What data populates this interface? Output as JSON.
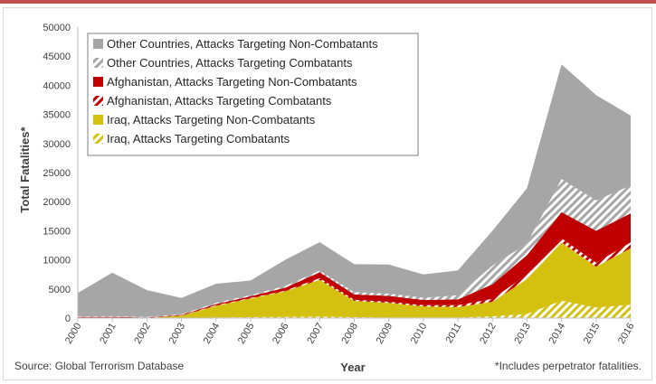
{
  "chart_data": {
    "type": "area",
    "stacked": true,
    "title": "",
    "xlabel": "Year",
    "ylabel": "Total Fatalities*",
    "ylim": [
      0,
      50000
    ],
    "yticks": [
      0,
      5000,
      10000,
      15000,
      20000,
      25000,
      30000,
      35000,
      40000,
      45000,
      50000
    ],
    "legend_position": "top-left",
    "x": [
      "2000",
      "2001",
      "2002",
      "2003",
      "2004",
      "2005",
      "2006",
      "2007",
      "2008",
      "2009",
      "2010",
      "2011",
      "2012",
      "2013",
      "2014",
      "2015",
      "2016"
    ],
    "series": [
      {
        "name": "Iraq, Attacks Targeting Combatants",
        "color": "#d4c10f",
        "pattern": "hatched",
        "values": [
          0,
          0,
          0,
          50,
          100,
          150,
          200,
          250,
          150,
          100,
          100,
          100,
          300,
          700,
          3000,
          1800,
          2300
        ]
      },
      {
        "name": "Iraq, Attacks Targeting Non-Combatants",
        "color": "#d4c10f",
        "pattern": "solid",
        "values": [
          0,
          0,
          0,
          350,
          2000,
          3200,
          4400,
          6300,
          2800,
          2500,
          1900,
          1800,
          2500,
          6000,
          10000,
          7000,
          9700
        ]
      },
      {
        "name": "Afghanistan, Attacks Targeting Combatants",
        "color": "#c00000",
        "pattern": "hatched",
        "values": [
          100,
          100,
          50,
          50,
          100,
          100,
          100,
          300,
          200,
          200,
          200,
          300,
          500,
          800,
          700,
          700,
          1000
        ]
      },
      {
        "name": "Afghanistan, Attacks Targeting Non-Combatants",
        "color": "#c00000",
        "pattern": "solid",
        "values": [
          100,
          100,
          50,
          100,
          200,
          300,
          500,
          1000,
          900,
          1000,
          900,
          1000,
          2500,
          3300,
          4500,
          5500,
          5000
        ]
      },
      {
        "name": "Other Countries, Attacks Targeting Combatants",
        "color": "#a6a6a6",
        "pattern": "hatched",
        "values": [
          100,
          100,
          100,
          100,
          200,
          200,
          300,
          300,
          400,
          400,
          400,
          700,
          3200,
          2000,
          5700,
          5200,
          4800
        ]
      },
      {
        "name": "Other Countries, Attacks Targeting Non-Combatants",
        "color": "#a6a6a6",
        "pattern": "solid",
        "values": [
          4000,
          7500,
          4600,
          2800,
          3300,
          2500,
          4500,
          4900,
          4800,
          5000,
          4000,
          4300,
          6000,
          9500,
          19700,
          18100,
          12000
        ]
      }
    ],
    "legend_order": [
      "Other Countries, Attacks Targeting Non-Combatants",
      "Other Countries, Attacks Targeting Combatants",
      "Afghanistan, Attacks Targeting Non-Combatants",
      "Afghanistan, Attacks Targeting Combatants",
      "Iraq, Attacks Targeting Non-Combatants",
      "Iraq, Attacks Targeting Combatants"
    ],
    "grid": false
  },
  "source": "Source: Global Terrorism Database",
  "footnote": "*Includes perpetrator fatalities."
}
